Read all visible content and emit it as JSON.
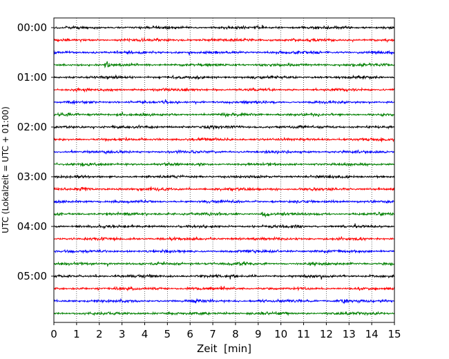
{
  "chart_data": {
    "type": "line",
    "chart_kind": "helicorder",
    "xlabel": "Zeit  [min]",
    "ylabel": "UTC (Lokalzeit = UTC + 01:00)",
    "xlim": [
      0,
      15
    ],
    "x_ticks": [
      0,
      1,
      2,
      3,
      4,
      5,
      6,
      7,
      8,
      9,
      10,
      11,
      12,
      13,
      14,
      15
    ],
    "y_tick_labels": [
      "00:00",
      "01:00",
      "02:00",
      "03:00",
      "04:00",
      "05:00"
    ],
    "grid": "vertical dotted lines at each minute",
    "trace_minutes": 15,
    "trace_count": 24,
    "trace_start_times": [
      "00:00",
      "00:15",
      "00:30",
      "00:45",
      "01:00",
      "01:15",
      "01:30",
      "01:45",
      "02:00",
      "02:15",
      "02:30",
      "02:45",
      "03:00",
      "03:15",
      "03:30",
      "03:45",
      "04:00",
      "04:15",
      "04:30",
      "04:45",
      "05:00",
      "05:15",
      "05:30",
      "05:45"
    ],
    "trace_color_cycle": [
      "#000000",
      "#ff0000",
      "#0000ff",
      "#008000"
    ],
    "noise_bursts": [
      {
        "trace": 3,
        "x": 2.4
      },
      {
        "trace": 13,
        "x": 1.3
      },
      {
        "trace": 15,
        "x": 9.3
      },
      {
        "trace": 16,
        "x": 10.7
      },
      {
        "trace": 19,
        "x": 8.3
      },
      {
        "trace": 22,
        "x": 12.8
      }
    ]
  }
}
